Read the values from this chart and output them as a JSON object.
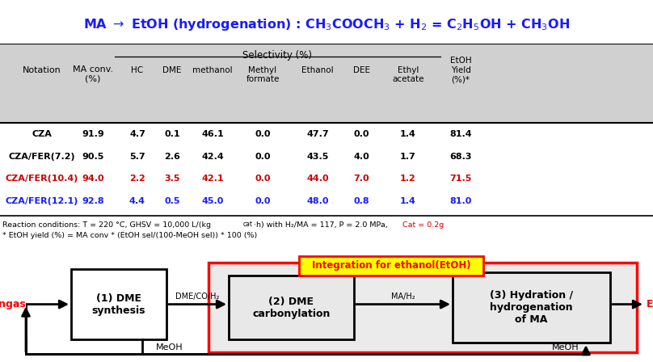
{
  "title": "MA → EtOH (hydrogenation) : CH$_3$COOCH$_3$ + H$_2$ = C$_2$H$_5$OH + CH$_3$OH",
  "title_color": "#1a1aff",
  "header_bg": "#d0d0d0",
  "selectivity_label": "Selectivity (%)",
  "col_headers_line1": [
    "Notation",
    "MA conv.\n(%)",
    "HC",
    "DME",
    "methanol",
    "Methyl\nformate",
    "Ethanol",
    "DEE",
    "Ethyl\nacetate",
    "EtOH\nYield\n(%)*"
  ],
  "rows": [
    {
      "label": "CZA",
      "color": "black",
      "values": [
        "91.9",
        "4.7",
        "0.1",
        "46.1",
        "0.0",
        "47.7",
        "0.0",
        "1.4",
        "81.4"
      ]
    },
    {
      "label": "CZA/FER(7.2)",
      "color": "black",
      "values": [
        "90.5",
        "5.7",
        "2.6",
        "42.4",
        "0.0",
        "43.5",
        "4.0",
        "1.7",
        "68.3"
      ]
    },
    {
      "label": "CZA/FER(10.4)",
      "color": "#cc0000",
      "values": [
        "94.0",
        "2.2",
        "3.5",
        "42.1",
        "0.0",
        "44.0",
        "7.0",
        "1.2",
        "71.5"
      ]
    },
    {
      "label": "CZA/FER(12.1)",
      "color": "#1a1aff",
      "values": [
        "92.8",
        "4.4",
        "0.5",
        "45.0",
        "0.0",
        "48.0",
        "0.8",
        "1.4",
        "81.0"
      ]
    }
  ],
  "fn1a": "Reaction conditions: T = 220 °C, GHSV = 10,000 L/(kg",
  "fn1b": "cat",
  "fn1c": "·h) with H",
  "fn1d": "2",
  "fn1e": "/MA = 117, P = 2.0 MPa, ",
  "fn1f": "Cat = 0.2g",
  "fn1f_color": "#cc0000",
  "fn2": "* EtOH yield (%) = MA conv * (EtOH sel/(100-MeOH sel)) * 100 (%)",
  "diag_syngas": "Syngas",
  "diag_etoh": "EtOH",
  "diag_box1": "(1) DME\nsynthesis",
  "diag_box2": "(2) DME\ncarbonylation",
  "diag_box3": "(3) Hydration /\nhydrogenation\nof MA",
  "diag_lbl12": "DME/CO/H₂",
  "diag_lbl23": "MA/H₂",
  "diag_meoh": "MeOH",
  "diag_int_lbl": "Integration for ethanol(EtOH)",
  "diag_int_color": "#ff0000",
  "diag_int_bg": "#ffff00",
  "diag_box23_bg": "#e8e8e8"
}
